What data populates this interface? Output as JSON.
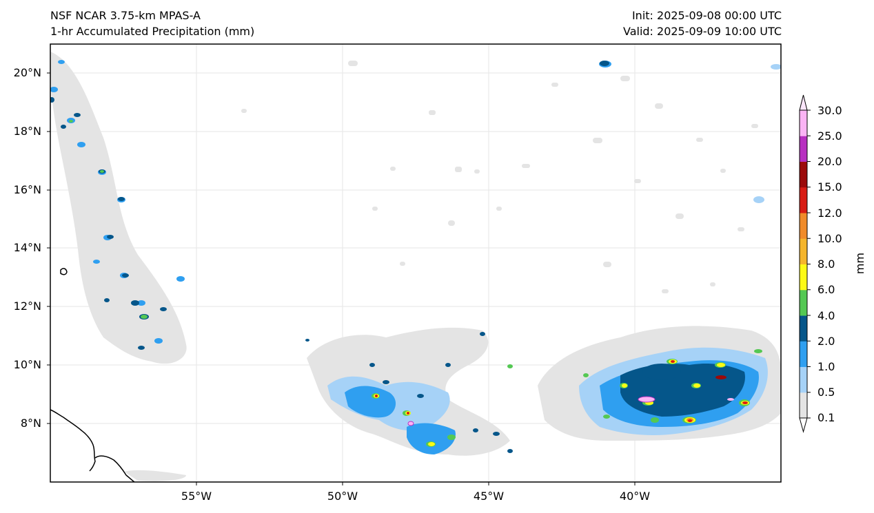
{
  "header": {
    "model": "NSF NCAR 3.75-km MPAS-A",
    "field": "1-hr Accumulated Precipitation (mm)",
    "init": "Init: 2025-09-08 00:00 UTC",
    "valid": "Valid: 2025-09-09 10:00 UTC"
  },
  "map": {
    "lat_labels": [
      "20°N",
      "18°N",
      "16°N",
      "14°N",
      "12°N",
      "10°N",
      "8°N"
    ],
    "lon_labels": [
      "55°W",
      "50°W",
      "45°W",
      "40°W"
    ],
    "extent": {
      "lon_min": -60,
      "lon_max": -35,
      "lat_min": 6,
      "lat_max": 21
    }
  },
  "colorbar": {
    "unit": "mm",
    "levels": [
      "0.1",
      "0.5",
      "1.0",
      "2.0",
      "4.0",
      "6.0",
      "8.0",
      "10.0",
      "12.0",
      "15.0",
      "20.0",
      "25.0",
      "30.0"
    ],
    "colors": [
      "#e4e4e4",
      "#a6d2f7",
      "#2f9ff0",
      "#05568a",
      "#54c853",
      "#fdfa16",
      "#f5b52c",
      "#f08b2a",
      "#d81c14",
      "#9b0a0a",
      "#b72fc0",
      "#fbb4f5"
    ]
  }
}
